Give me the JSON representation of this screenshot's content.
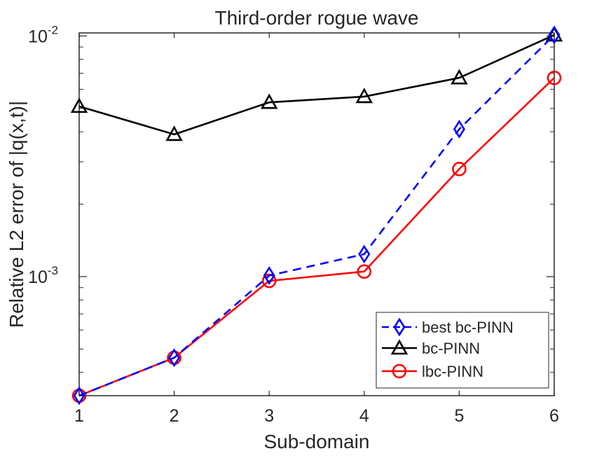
{
  "chart_data": {
    "type": "line",
    "title": "Third-order rogue wave",
    "xlabel": "Sub-domain",
    "ylabel": "Relative L2 error of |q(x,t)|",
    "yscale": "log",
    "xlim": [
      1,
      6
    ],
    "ylim": [
      0.00032,
      0.0103
    ],
    "x": [
      1,
      2,
      3,
      4,
      5,
      6
    ],
    "xticks": [
      "1",
      "2",
      "3",
      "4",
      "5",
      "6"
    ],
    "yticks": [
      {
        "value": 0.001,
        "base": "10",
        "exp": "-3"
      },
      {
        "value": 0.01,
        "base": "10",
        "exp": "-2"
      }
    ],
    "grid": false,
    "legend_position": "bottom-right",
    "series": [
      {
        "name": "best bc-PINN",
        "color": "#0000ff",
        "dash": "dashed",
        "marker": "diamond",
        "values": [
          0.00032,
          0.00046,
          0.00101,
          0.00124,
          0.0041,
          0.0101
        ]
      },
      {
        "name": "bc-PINN",
        "color": "#000000",
        "dash": "solid",
        "marker": "triangle",
        "values": [
          0.0051,
          0.0039,
          0.0053,
          0.0056,
          0.0067,
          0.0101
        ]
      },
      {
        "name": "lbc-PINN",
        "color": "#ff0000",
        "dash": "solid",
        "marker": "circle",
        "values": [
          0.00032,
          0.00046,
          0.00096,
          0.00105,
          0.0028,
          0.0067
        ]
      }
    ]
  }
}
